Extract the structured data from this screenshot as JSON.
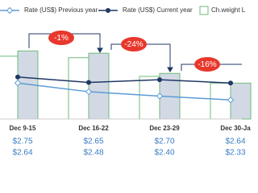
{
  "chart_data": {
    "type": "bar",
    "categories": [
      "Dec 9-15",
      "Dec 16-22",
      "Dec 23-29",
      "Dec 30-Ja"
    ],
    "ylim": [
      0,
      100
    ],
    "y2lim": [
      1.98,
      3.35
    ],
    "series": [
      {
        "type": "bar",
        "name": "Ch.weight L",
        "color": "#ffffff",
        "edge": "#6dbb7c",
        "values": [
          84,
          82,
          57,
          48
        ]
      },
      {
        "type": "bar",
        "color": "#d3d9e4",
        "edge": "#6dbb7c",
        "values": [
          91,
          88,
          61,
          48
        ]
      },
      {
        "type": "line",
        "name": "Rate (US$) Previous year",
        "color": "#5b9bd5",
        "marker": "diamond",
        "axis": "y2",
        "values": [
          2.64,
          2.48,
          2.4,
          2.33
        ],
        "value_labels": [
          "$2.64",
          "$2.48",
          "$2.40",
          "$2.33"
        ]
      },
      {
        "type": "line",
        "name": "Rate (US$) Current year",
        "color": "#1f3864",
        "marker": "circle",
        "axis": "y2",
        "values": [
          2.75,
          2.65,
          2.7,
          2.64
        ],
        "value_labels": [
          "$2.75",
          "$2.65",
          "$2.70",
          "$2.64"
        ]
      }
    ],
    "annotations": [
      "-1%",
      "-24%",
      "-16%"
    ]
  }
}
